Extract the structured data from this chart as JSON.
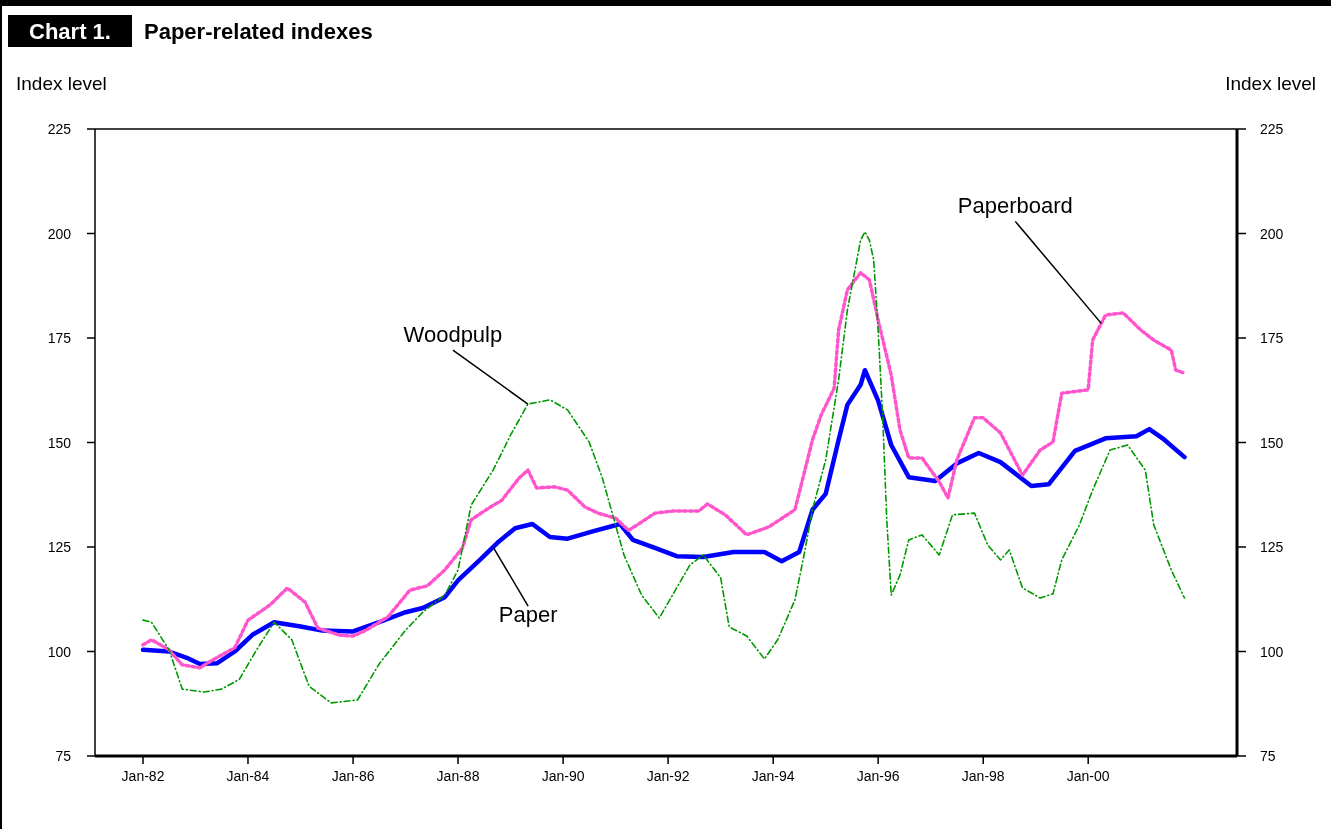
{
  "chart_data": {
    "type": "line",
    "title": "Paper-related indexes",
    "ylabel": "Index level",
    "y2label": "Index level",
    "annotations": [
      "Chart 1."
    ],
    "xlim": [
      "1981-02",
      "2002-11"
    ],
    "xticks": [
      {
        "value": "1982-01",
        "label": "Jan-82"
      },
      {
        "value": "1984-01",
        "label": "Jan-84"
      },
      {
        "value": "1986-01",
        "label": "Jan-86"
      },
      {
        "value": "1988-01",
        "label": "Jan-88"
      },
      {
        "value": "1990-01",
        "label": "Jan-90"
      },
      {
        "value": "1992-01",
        "label": "Jan-92"
      },
      {
        "value": "1994-01",
        "label": "Jan-94"
      },
      {
        "value": "1996-01",
        "label": "Jan-96"
      },
      {
        "value": "1998-01",
        "label": "Jan-98"
      },
      {
        "value": "2000-01",
        "label": "Jan-00"
      }
    ],
    "ylim": [
      75,
      225
    ],
    "yticks": [
      75,
      100,
      125,
      150,
      175,
      200,
      225
    ],
    "y2lim": [
      75,
      225
    ],
    "y2ticks": [
      75,
      100,
      125,
      150,
      175,
      200,
      225
    ],
    "grid": false,
    "legend": false,
    "marker": "none",
    "series": [
      {
        "name": "Paper",
        "color": "#0000ff",
        "line_style": "solid",
        "x": [
          "1982-01",
          "1982-07",
          "1982-11",
          "1983-02",
          "1983-06",
          "1983-10",
          "1984-02",
          "1984-07",
          "1985-01",
          "1985-06",
          "1986-01",
          "1986-07",
          "1987-01",
          "1987-05",
          "1987-10",
          "1988-01",
          "1988-06",
          "1988-10",
          "1989-02",
          "1989-06",
          "1989-10",
          "1990-02",
          "1990-08",
          "1991-02",
          "1991-05",
          "1991-10",
          "1992-03",
          "1992-09",
          "1993-04",
          "1993-11",
          "1994-03",
          "1994-07",
          "1994-10",
          "1995-01",
          "1995-04",
          "1995-06",
          "1995-09",
          "1995-10",
          "1996-01",
          "1996-04",
          "1996-08",
          "1997-02",
          "1997-07",
          "1997-12",
          "1998-05",
          "1998-12",
          "1999-04",
          "1999-10",
          "2000-05",
          "2000-12",
          "2001-03",
          "2001-06",
          "2001-11"
        ],
        "values": [
          100.4,
          100,
          98.5,
          97,
          97.2,
          100,
          104,
          107,
          106,
          105,
          104.8,
          107,
          109.4,
          110.4,
          113,
          117,
          121.9,
          126,
          129.5,
          130.5,
          127.4,
          127,
          128.8,
          130.5,
          126.7,
          124.8,
          122.8,
          122.6,
          123.8,
          123.8,
          121.6,
          123.8,
          133.9,
          137.7,
          150.6,
          159,
          163.8,
          167.3,
          160,
          149.4,
          141.7,
          140.8,
          145,
          147.5,
          145.3,
          139.6,
          140,
          148,
          151,
          151.5,
          153.2,
          151,
          146.5
        ]
      },
      {
        "name": "Paperboard",
        "color": "#ff55cc",
        "line_style": "dotted",
        "x": [
          "1982-01",
          "1982-03",
          "1982-07",
          "1982-10",
          "1983-02",
          "1983-05",
          "1983-10",
          "1984-01",
          "1984-06",
          "1984-10",
          "1985-02",
          "1985-05",
          "1985-10",
          "1986-01",
          "1986-04",
          "1986-09",
          "1987-02",
          "1987-06",
          "1987-10",
          "1988-02",
          "1988-04",
          "1988-08",
          "1988-11",
          "1989-03",
          "1989-05",
          "1989-07",
          "1989-11",
          "1990-02",
          "1990-06",
          "1990-09",
          "1991-01",
          "1991-04",
          "1991-06",
          "1991-10",
          "1992-02",
          "1992-08",
          "1992-10",
          "1993-02",
          "1993-07",
          "1993-12",
          "1994-06",
          "1994-08",
          "1994-10",
          "1994-12",
          "1995-03",
          "1995-04",
          "1995-06",
          "1995-09",
          "1995-11",
          "1996-01",
          "1996-04",
          "1996-06",
          "1996-08",
          "1996-11",
          "1997-03",
          "1997-05",
          "1997-07",
          "1997-11",
          "1998-01",
          "1998-05",
          "1998-10",
          "1999-02",
          "1999-05",
          "1999-07",
          "2000-01",
          "2000-02",
          "2000-05",
          "2000-09",
          "2001-01",
          "2001-04",
          "2001-08",
          "2001-09",
          "2001-11"
        ],
        "values": [
          101.6,
          102.8,
          100.4,
          96.8,
          96.1,
          98,
          100.9,
          107.5,
          111.1,
          115.2,
          111.8,
          105.6,
          103.9,
          103.7,
          105.1,
          108.3,
          114.7,
          115.7,
          119.5,
          124.8,
          131.5,
          134.3,
          136.2,
          141.5,
          143.4,
          139.1,
          139.4,
          138.6,
          134.6,
          133.1,
          131.9,
          129,
          130.3,
          133.1,
          133.6,
          133.6,
          135.3,
          132.7,
          127.9,
          129.8,
          133.9,
          142.2,
          150.6,
          156.6,
          163,
          176.9,
          186.5,
          190.6,
          188.9,
          179.3,
          166.1,
          153,
          146.3,
          146.3,
          140.6,
          136.7,
          145.8,
          155.9,
          155.9,
          152.3,
          142.2,
          148.2,
          150.1,
          161.8,
          162.6,
          174.5,
          180.5,
          181,
          176.9,
          174.5,
          172.1,
          167.3,
          166.6
        ]
      },
      {
        "name": "Woodpulp",
        "color": "#009900",
        "line_style": "dashed",
        "x": [
          "1982-01",
          "1982-03",
          "1982-07",
          "1982-10",
          "1983-03",
          "1983-07",
          "1983-11",
          "1984-03",
          "1984-07",
          "1984-11",
          "1985-03",
          "1985-08",
          "1986-02",
          "1986-07",
          "1987-01",
          "1987-05",
          "1987-10",
          "1988-01",
          "1988-04",
          "1988-09",
          "1989-01",
          "1989-05",
          "1989-10",
          "1990-02",
          "1990-07",
          "1990-10",
          "1991-03",
          "1991-07",
          "1991-11",
          "1992-02",
          "1992-06",
          "1992-09",
          "1993-01",
          "1993-03",
          "1993-07",
          "1993-11",
          "1994-02",
          "1994-06",
          "1994-08",
          "1994-10",
          "1995-01",
          "1995-04",
          "1995-06",
          "1995-09",
          "1995-10",
          "1995-11",
          "1995-12",
          "1996-01",
          "1996-02",
          "1996-03",
          "1996-04",
          "1996-06",
          "1996-08",
          "1996-11",
          "1997-03",
          "1997-06",
          "1997-11",
          "1998-02",
          "1998-05",
          "1998-07",
          "1998-10",
          "1999-02",
          "1999-05",
          "1999-07",
          "1999-11",
          "2000-02",
          "2000-06",
          "2000-10",
          "2001-02",
          "2001-04",
          "2001-08",
          "2001-11"
        ],
        "values": [
          107.5,
          107,
          100.4,
          91,
          90.3,
          91,
          93.3,
          100.4,
          107,
          102.8,
          91.7,
          87.7,
          88.4,
          97,
          105.1,
          109.4,
          113.5,
          119.5,
          135,
          143.4,
          151.8,
          159.2,
          160.2,
          157.8,
          150.1,
          141.5,
          123,
          113.5,
          108,
          113.5,
          120.7,
          123.1,
          117.6,
          105.9,
          103.7,
          98.2,
          102.8,
          112.3,
          122.6,
          133.9,
          145.8,
          165,
          181.7,
          198.4,
          200.4,
          198.4,
          193.7,
          176.9,
          156.6,
          131.5,
          113.5,
          118.3,
          126.7,
          127.9,
          123.1,
          132.7,
          133.1,
          125.5,
          121.9,
          124.3,
          115.2,
          112.8,
          113.8,
          121.9,
          130.3,
          138.6,
          148.2,
          149.4,
          143.4,
          130.3,
          119.5,
          112.8
        ]
      }
    ]
  }
}
